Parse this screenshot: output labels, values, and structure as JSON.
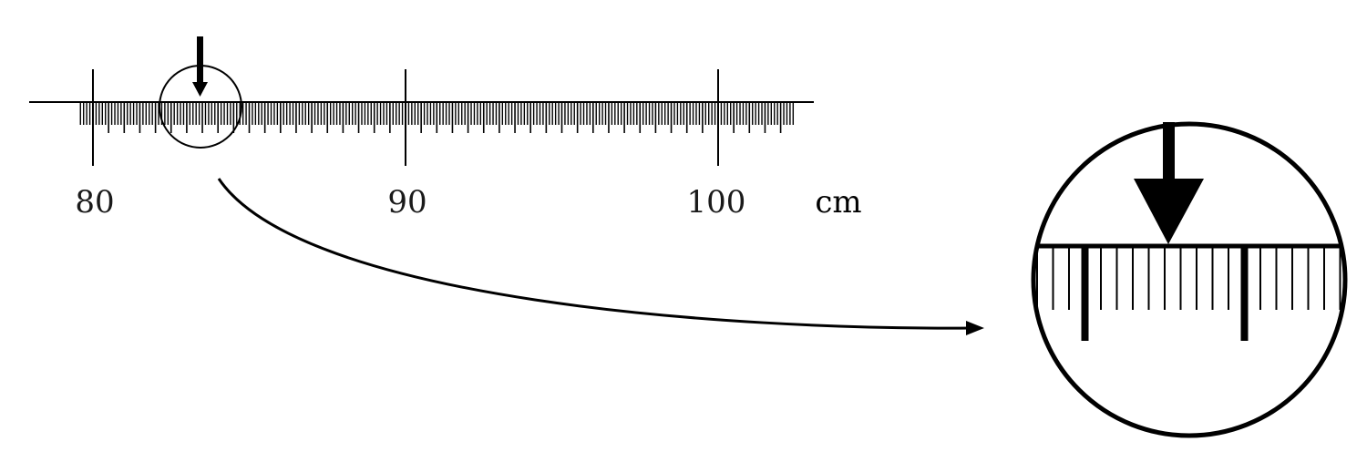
{
  "ruler": {
    "labels": [
      "80",
      "90",
      "100"
    ],
    "unit": "cm",
    "range_cm": [
      79.0,
      102.0
    ],
    "major_every_cm": 10,
    "minor_every_cm": 0.1,
    "pointer_cm": 83.4
  },
  "magnifier": {
    "range_cm": [
      83.0,
      84.0
    ],
    "pointer_cm": 83.4,
    "minor_every_cm": 0.1,
    "medium_every_cm": 0.5
  },
  "colors": {
    "ink": "#000000",
    "label": "#1a1a1a",
    "background": "#ffffff"
  }
}
